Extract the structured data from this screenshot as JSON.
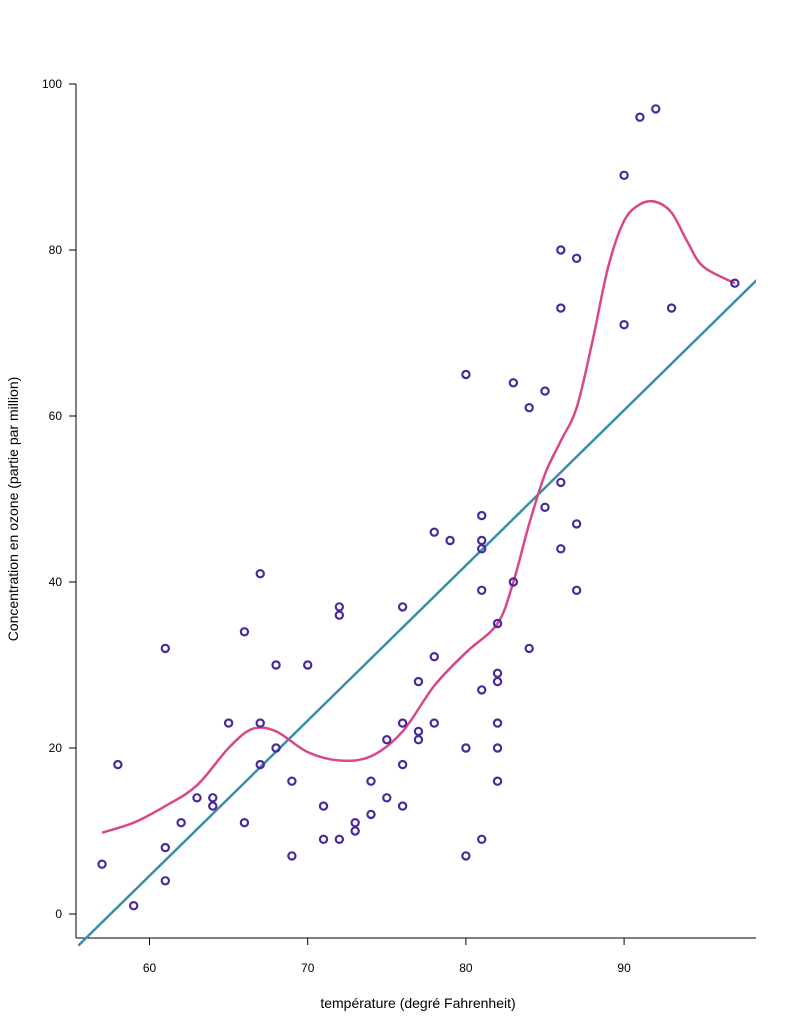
{
  "chart_data": {
    "type": "scatter",
    "title": "",
    "xlabel": "température (degré Fahrenheit)",
    "ylabel": "Concentration en ozone (partie par million)",
    "xlim": [
      55.5,
      98.5
    ],
    "ylim": [
      -3,
      103
    ],
    "x_ticks": [
      60,
      70,
      80,
      90
    ],
    "y_ticks": [
      0,
      20,
      40,
      60,
      80,
      100
    ],
    "grid": false,
    "legend": "none",
    "colors": {
      "points": "#4a2a9a",
      "regression_line": "#3a8fa8",
      "smooth_curve": "#d6488a"
    },
    "points": [
      [
        57,
        6
      ],
      [
        58,
        18
      ],
      [
        59,
        1
      ],
      [
        61,
        32
      ],
      [
        61,
        8
      ],
      [
        61,
        4
      ],
      [
        62,
        11
      ],
      [
        63,
        14
      ],
      [
        64,
        14
      ],
      [
        64,
        13
      ],
      [
        65,
        23
      ],
      [
        66,
        34
      ],
      [
        66,
        11
      ],
      [
        67,
        41
      ],
      [
        67,
        23
      ],
      [
        67,
        18
      ],
      [
        68,
        30
      ],
      [
        68,
        20
      ],
      [
        69,
        16
      ],
      [
        69,
        7
      ],
      [
        70,
        30
      ],
      [
        71,
        13
      ],
      [
        71,
        9
      ],
      [
        72,
        37
      ],
      [
        72,
        36
      ],
      [
        72,
        9
      ],
      [
        73,
        11
      ],
      [
        73,
        10
      ],
      [
        74,
        16
      ],
      [
        74,
        12
      ],
      [
        75,
        21
      ],
      [
        75,
        14
      ],
      [
        76,
        37
      ],
      [
        76,
        23
      ],
      [
        76,
        18
      ],
      [
        76,
        13
      ],
      [
        77,
        28
      ],
      [
        77,
        22
      ],
      [
        77,
        21
      ],
      [
        78,
        46
      ],
      [
        78,
        31
      ],
      [
        78,
        23
      ],
      [
        79,
        45
      ],
      [
        80,
        65
      ],
      [
        80,
        20
      ],
      [
        80,
        7
      ],
      [
        81,
        48
      ],
      [
        81,
        45
      ],
      [
        81,
        44
      ],
      [
        81,
        39
      ],
      [
        81,
        27
      ],
      [
        81,
        9
      ],
      [
        82,
        35
      ],
      [
        82,
        29
      ],
      [
        82,
        28
      ],
      [
        82,
        23
      ],
      [
        82,
        20
      ],
      [
        82,
        16
      ],
      [
        83,
        64
      ],
      [
        83,
        40
      ],
      [
        84,
        61
      ],
      [
        84,
        32
      ],
      [
        85,
        63
      ],
      [
        85,
        49
      ],
      [
        86,
        80
      ],
      [
        86,
        73
      ],
      [
        86,
        52
      ],
      [
        86,
        44
      ],
      [
        87,
        79
      ],
      [
        87,
        47
      ],
      [
        87,
        39
      ],
      [
        90,
        89
      ],
      [
        90,
        71
      ],
      [
        91,
        96
      ],
      [
        92,
        97
      ],
      [
        93,
        73
      ],
      [
        97,
        76
      ]
    ],
    "regression_line": {
      "slope": 1.87,
      "intercept": -107.6,
      "x_range": [
        55.5,
        98.5
      ]
    },
    "smooth_curve": [
      [
        57,
        9.8
      ],
      [
        59,
        11
      ],
      [
        61,
        13
      ],
      [
        63,
        15.5
      ],
      [
        65,
        20
      ],
      [
        66.5,
        22.3
      ],
      [
        68,
        22
      ],
      [
        70,
        19.5
      ],
      [
        72,
        18.5
      ],
      [
        74,
        19
      ],
      [
        76,
        22
      ],
      [
        78,
        27.5
      ],
      [
        80,
        31.5
      ],
      [
        82,
        35
      ],
      [
        83,
        40
      ],
      [
        84,
        47
      ],
      [
        85,
        53
      ],
      [
        86,
        57
      ],
      [
        87,
        61
      ],
      [
        88,
        69
      ],
      [
        89,
        78
      ],
      [
        90,
        83.5
      ],
      [
        91,
        85.5
      ],
      [
        92,
        85.8
      ],
      [
        93,
        84.5
      ],
      [
        94,
        81
      ],
      [
        95,
        78
      ],
      [
        97,
        76
      ]
    ]
  }
}
